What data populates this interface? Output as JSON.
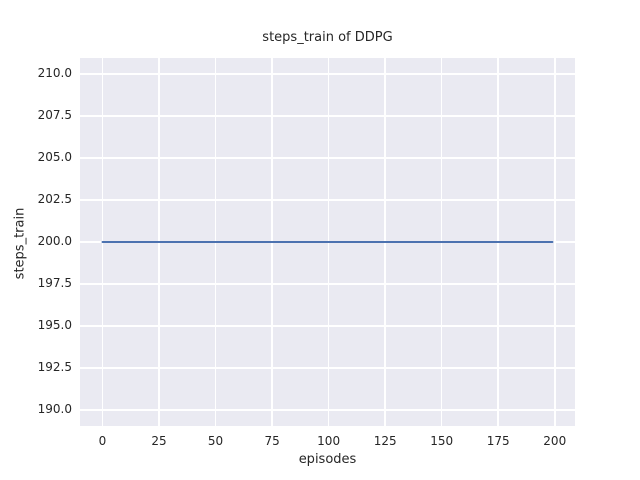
{
  "chart_data": {
    "type": "line",
    "title": "steps_train of DDPG",
    "xlabel": "episodes",
    "ylabel": "steps_train",
    "xlim": [
      -9.95,
      208.95
    ],
    "ylim": [
      189.05,
      210.95
    ],
    "grid": true,
    "legend": false,
    "xticks": {
      "values": [
        0,
        25,
        50,
        75,
        100,
        125,
        150,
        175,
        200
      ],
      "labels": [
        "0",
        "25",
        "50",
        "75",
        "100",
        "125",
        "150",
        "175",
        "200"
      ]
    },
    "yticks": {
      "values": [
        190.0,
        192.5,
        195.0,
        197.5,
        200.0,
        202.5,
        205.0,
        207.5,
        210.0
      ],
      "labels": [
        "190.0",
        "192.5",
        "195.0",
        "197.5",
        "200.0",
        "202.5",
        "205.0",
        "207.5",
        "210.0"
      ]
    },
    "series": [
      {
        "name": "steps_train",
        "color": "#4c72b0",
        "x": [
          0,
          199
        ],
        "y": [
          200,
          200
        ]
      }
    ],
    "colors": {
      "figure_background": "#ffffff",
      "axes_background": "#eaeaf2",
      "gridline": "#ffffff",
      "line": "#4c72b0",
      "text": "#262626"
    }
  }
}
